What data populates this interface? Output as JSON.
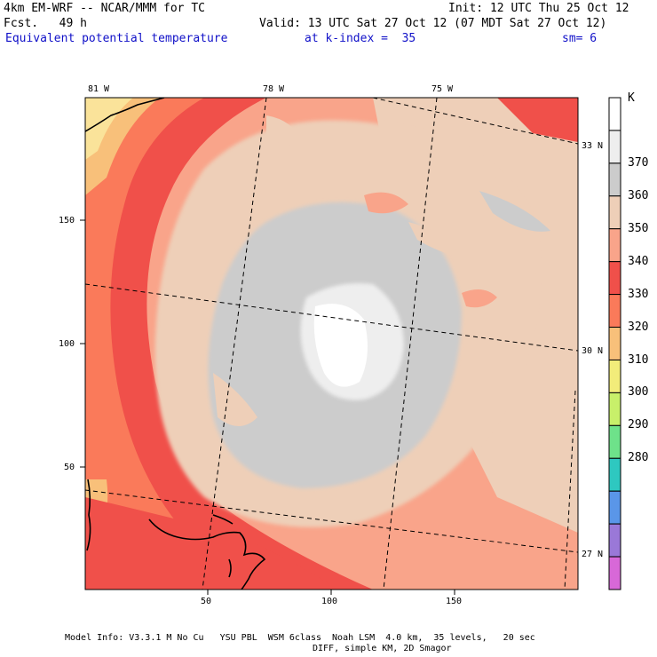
{
  "header": {
    "model": "4km EM-WRF -- NCAR/MMM for TC",
    "init": "Init: 12 UTC Thu 25 Oct 12",
    "fcst": "Fcst.   49 h",
    "valid": "Valid: 13 UTC Sat 27 Oct 12 (07 MDT Sat 27 Oct 12)",
    "field": "Equivalent potential temperature",
    "kindex": "at k-index =  35",
    "sm": "sm= 6"
  },
  "axes": {
    "x_ticks": [
      "50",
      "100",
      "150"
    ],
    "y_ticks": [
      "150",
      "100",
      "50"
    ],
    "lon_labels": [
      "81 W",
      "78 W",
      "75 W"
    ],
    "lat_labels": [
      "33 N",
      "30 N",
      "27 N"
    ]
  },
  "colorbar": {
    "unit": "K",
    "levels": [
      "370",
      "360",
      "350",
      "340",
      "330",
      "320",
      "310",
      "300",
      "290",
      "280"
    ],
    "colors": [
      "#ffffff",
      "#eeeeee",
      "#cccccc",
      "#eecfb8",
      "#f9a48a",
      "#f0504a",
      "#fa7a5a",
      "#f8c07a",
      "#f2ec7a",
      "#c8f06a",
      "#6ee28a",
      "#2ec8c0",
      "#5a96e8",
      "#9a78d8",
      "#d868d8"
    ]
  },
  "footer": {
    "line1": "Model Info: V3.3.1 M No Cu   YSU PBL  WSM 6class  Noah LSM  4.0 km,  35 levels,   20 sec",
    "line2": "DIFF, simple KM, 2D Smagor"
  }
}
